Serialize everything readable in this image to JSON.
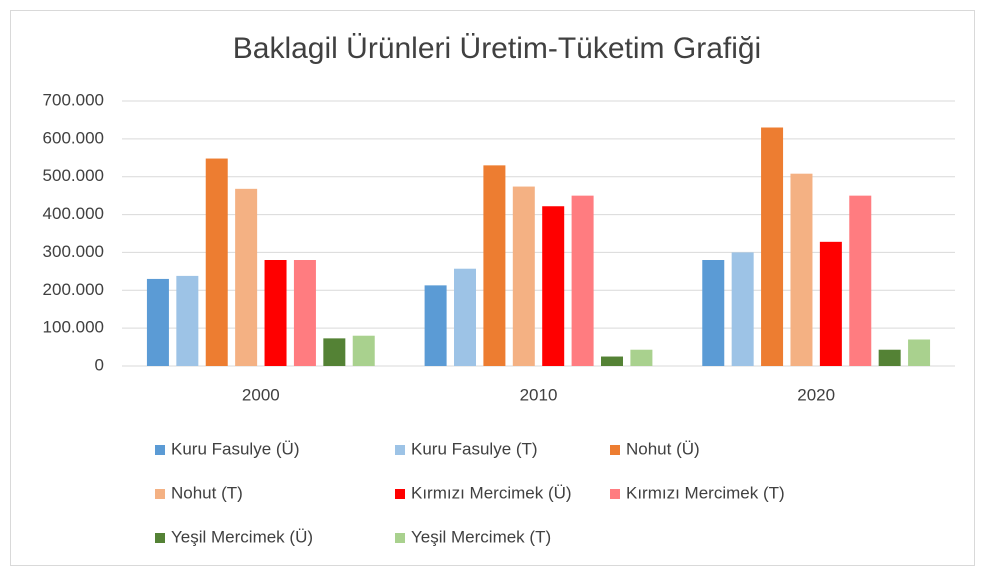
{
  "chart_data": {
    "type": "bar",
    "title": "Baklagil Ürünleri Üretim-Tüketim Grafiği",
    "categories": [
      "2000",
      "2010",
      "2020"
    ],
    "series": [
      {
        "name": "Kuru Fasulye (Ü)",
        "color": "#5b9bd5",
        "values": [
          230000,
          213000,
          280000
        ]
      },
      {
        "name": "Kuru Fasulye (T)",
        "color": "#9dc3e6",
        "values": [
          238000,
          257000,
          300000
        ]
      },
      {
        "name": "Nohut (Ü)",
        "color": "#ed7d31",
        "values": [
          548000,
          530000,
          630000
        ]
      },
      {
        "name": "Nohut (T)",
        "color": "#f4b183",
        "values": [
          468000,
          474000,
          508000
        ]
      },
      {
        "name": "Kırmızı Mercimek (Ü)",
        "color": "#ff0000",
        "values": [
          280000,
          422000,
          328000
        ]
      },
      {
        "name": "Kırmızı Mercimek (T)",
        "color": "#ff7c80",
        "values": [
          280000,
          450000,
          450000
        ]
      },
      {
        "name": "Yeşil Mercimek (Ü)",
        "color": "#548235",
        "values": [
          73000,
          25000,
          43000
        ]
      },
      {
        "name": "Yeşil Mercimek (T)",
        "color": "#a9d18e",
        "values": [
          80000,
          43000,
          70000
        ]
      }
    ],
    "ylim": [
      0,
      700000
    ],
    "yticks": [
      0,
      {
        "value": 100000,
        "label": "100.000"
      },
      {
        "value": 200000,
        "label": "200.000"
      },
      {
        "value": 300000,
        "label": "300.000"
      },
      {
        "value": 400000,
        "label": "400.000"
      },
      {
        "value": 500000,
        "label": "500.000"
      },
      {
        "value": 600000,
        "label": "600.000"
      },
      {
        "value": 700000,
        "label": "700.000"
      }
    ],
    "grid": true
  }
}
